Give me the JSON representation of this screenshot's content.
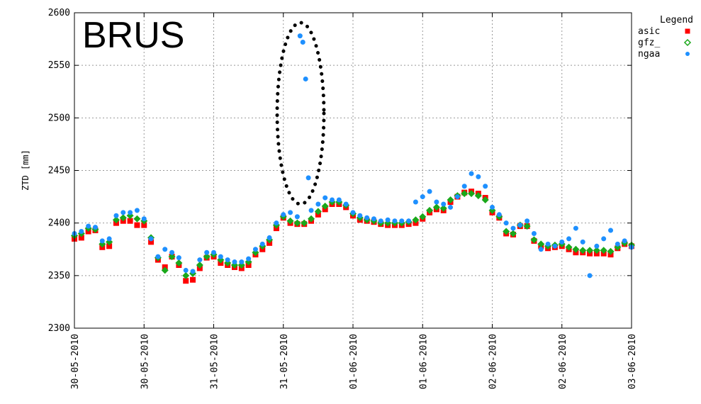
{
  "chart_data": {
    "type": "scatter",
    "title": "BRUS",
    "ylabel": "ZTD [mm]",
    "xlabel": "",
    "ylim": [
      2300,
      2600
    ],
    "yticks": [
      2300,
      2350,
      2400,
      2450,
      2500,
      2550,
      2600
    ],
    "xlim": [
      0,
      4
    ],
    "xticks": [
      0,
      0.5,
      1,
      1.5,
      2,
      2.5,
      3,
      3.5,
      4
    ],
    "xtick_labels": [
      "30-05-2010",
      "30-05-2010",
      "31-05-2010",
      "31-05-2010",
      "01-06-2010",
      "01-06-2010",
      "02-06-2010",
      "02-06-2010",
      "03-06-2010"
    ],
    "grid": true,
    "legend": {
      "title": "Legend",
      "placement": "top-right"
    },
    "series": [
      {
        "name": "asic",
        "color": "#ff0000",
        "marker": "square",
        "x": [
          0.0,
          0.05,
          0.1,
          0.15,
          0.2,
          0.25,
          0.3,
          0.35,
          0.4,
          0.45,
          0.5,
          0.55,
          0.6,
          0.65,
          0.7,
          0.75,
          0.8,
          0.85,
          0.9,
          0.95,
          1.0,
          1.05,
          1.1,
          1.15,
          1.2,
          1.25,
          1.3,
          1.35,
          1.4,
          1.45,
          1.5,
          1.55,
          1.6,
          1.65,
          1.7,
          1.75,
          1.8,
          1.85,
          1.9,
          1.95,
          2.0,
          2.05,
          2.1,
          2.15,
          2.2,
          2.25,
          2.3,
          2.35,
          2.4,
          2.45,
          2.5,
          2.55,
          2.6,
          2.65,
          2.7,
          2.75,
          2.8,
          2.85,
          2.9,
          2.95,
          3.0,
          3.05,
          3.1,
          3.15,
          3.2,
          3.25,
          3.3,
          3.35,
          3.4,
          3.45,
          3.5,
          3.55,
          3.6,
          3.65,
          3.7,
          3.75,
          3.8,
          3.85,
          3.9,
          3.95,
          4.0
        ],
        "y": [
          2385,
          2386,
          2392,
          2393,
          2377,
          2378,
          2400,
          2402,
          2402,
          2398,
          2398,
          2382,
          2365,
          2358,
          2368,
          2360,
          2345,
          2346,
          2357,
          2367,
          2368,
          2362,
          2360,
          2358,
          2357,
          2360,
          2370,
          2375,
          2381,
          2395,
          2405,
          2400,
          2399,
          2399,
          2402,
          2408,
          2413,
          2418,
          2418,
          2415,
          2407,
          2403,
          2402,
          2401,
          2399,
          2398,
          2398,
          2398,
          2399,
          2400,
          2404,
          2410,
          2413,
          2412,
          2420,
          2425,
          2429,
          2430,
          2428,
          2424,
          2410,
          2405,
          2390,
          2389,
          2397,
          2397,
          2383,
          2378,
          2376,
          2377,
          2378,
          2375,
          2372,
          2372,
          2371,
          2371,
          2371,
          2370,
          2376,
          2380,
          2378
        ]
      },
      {
        "name": "gfz_",
        "color": "#1aa81a",
        "marker": "diamond",
        "x": [
          0.0,
          0.05,
          0.1,
          0.15,
          0.2,
          0.25,
          0.3,
          0.35,
          0.4,
          0.45,
          0.5,
          0.55,
          0.6,
          0.65,
          0.7,
          0.75,
          0.8,
          0.85,
          0.9,
          0.95,
          1.0,
          1.05,
          1.1,
          1.15,
          1.2,
          1.25,
          1.3,
          1.35,
          1.4,
          1.45,
          1.5,
          1.55,
          1.6,
          1.65,
          1.7,
          1.75,
          1.8,
          1.85,
          1.9,
          1.95,
          2.0,
          2.05,
          2.1,
          2.15,
          2.2,
          2.25,
          2.3,
          2.35,
          2.4,
          2.45,
          2.5,
          2.55,
          2.6,
          2.65,
          2.7,
          2.75,
          2.8,
          2.85,
          2.9,
          2.95,
          3.0,
          3.05,
          3.1,
          3.15,
          3.2,
          3.25,
          3.3,
          3.35,
          3.4,
          3.45,
          3.5,
          3.55,
          3.6,
          3.65,
          3.7,
          3.75,
          3.8,
          3.85,
          3.9,
          3.95,
          4.0
        ],
        "y": [
          2388,
          2390,
          2395,
          2394,
          2380,
          2382,
          2403,
          2405,
          2407,
          2404,
          2402,
          2386,
          2367,
          2355,
          2368,
          2362,
          2350,
          2352,
          2360,
          2368,
          2370,
          2365,
          2362,
          2360,
          2360,
          2363,
          2372,
          2378,
          2384,
          2398,
          2406,
          2402,
          2400,
          2400,
          2404,
          2411,
          2416,
          2420,
          2420,
          2417,
          2409,
          2405,
          2403,
          2402,
          2400,
          2400,
          2400,
          2400,
          2401,
          2403,
          2406,
          2412,
          2415,
          2414,
          2422,
          2426,
          2428,
          2428,
          2426,
          2422,
          2412,
          2406,
          2392,
          2390,
          2398,
          2397,
          2384,
          2380,
          2378,
          2379,
          2380,
          2377,
          2375,
          2374,
          2374,
          2374,
          2374,
          2373,
          2377,
          2381,
          2379
        ]
      },
      {
        "name": "ngaa",
        "color": "#1e90ff",
        "marker": "circle",
        "x": [
          0.0,
          0.05,
          0.1,
          0.15,
          0.2,
          0.25,
          0.3,
          0.35,
          0.4,
          0.45,
          0.5,
          0.55,
          0.6,
          0.65,
          0.7,
          0.75,
          0.8,
          0.85,
          0.9,
          0.95,
          1.0,
          1.05,
          1.1,
          1.15,
          1.2,
          1.25,
          1.3,
          1.35,
          1.4,
          1.45,
          1.5,
          1.55,
          1.6,
          1.62,
          1.64,
          1.66,
          1.68,
          1.7,
          1.75,
          1.8,
          1.85,
          1.9,
          1.95,
          2.0,
          2.05,
          2.1,
          2.15,
          2.2,
          2.25,
          2.3,
          2.35,
          2.4,
          2.45,
          2.5,
          2.55,
          2.6,
          2.65,
          2.7,
          2.75,
          2.8,
          2.85,
          2.9,
          2.95,
          3.0,
          3.05,
          3.1,
          3.15,
          3.2,
          3.25,
          3.3,
          3.35,
          3.4,
          3.45,
          3.5,
          3.55,
          3.6,
          3.65,
          3.7,
          3.75,
          3.8,
          3.85,
          3.9,
          3.95,
          4.0
        ],
        "y": [
          2390,
          2392,
          2397,
          2396,
          2383,
          2385,
          2407,
          2410,
          2410,
          2412,
          2404,
          2385,
          2368,
          2375,
          2372,
          2367,
          2355,
          2354,
          2365,
          2372,
          2372,
          2368,
          2365,
          2363,
          2363,
          2366,
          2375,
          2380,
          2386,
          2400,
          2408,
          2410,
          2406,
          2578,
          2572,
          2537,
          2443,
          2412,
          2418,
          2424,
          2422,
          2422,
          2418,
          2410,
          2407,
          2405,
          2404,
          2402,
          2403,
          2402,
          2402,
          2402,
          2420,
          2425,
          2430,
          2420,
          2418,
          2415,
          2425,
          2435,
          2447,
          2444,
          2435,
          2415,
          2408,
          2400,
          2395,
          2398,
          2402,
          2390,
          2375,
          2380,
          2378,
          2382,
          2385,
          2395,
          2382,
          2350,
          2378,
          2385,
          2393,
          2380,
          2383,
          2377
        ]
      }
    ]
  }
}
